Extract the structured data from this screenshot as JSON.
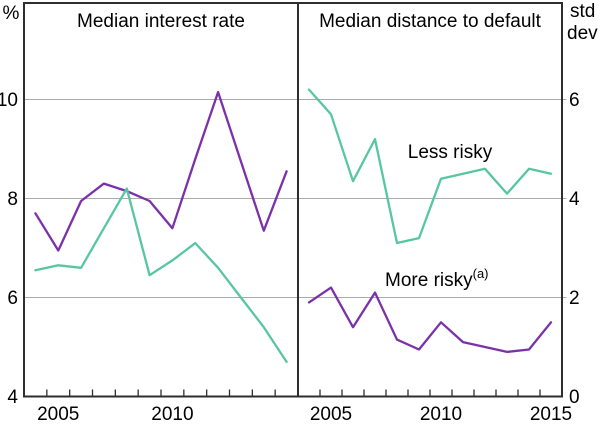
{
  "labels": {
    "left_unit": "%",
    "right_unit_line1": "std",
    "right_unit_line2": "dev",
    "less_risky": "Less risky",
    "more_risky": "More risky",
    "more_risky_sup": "(a)"
  },
  "colors": {
    "less_risky": "#58C6A3",
    "more_risky": "#7B31AA",
    "grid": "#ABABAB",
    "frame": "#2E2E2E",
    "tick": "#2E2E2E"
  },
  "chart_data": [
    {
      "type": "line",
      "panel": "left",
      "title": "Median interest rate",
      "ylabel": "%",
      "ylim": [
        4,
        12
      ],
      "yticks": [
        4,
        6,
        8,
        10
      ],
      "grid": true,
      "x": [
        2004,
        2005,
        2006,
        2007,
        2008,
        2009,
        2010,
        2011,
        2012,
        2013,
        2014,
        2015
      ],
      "xticks": [
        2005,
        2006,
        2007,
        2008,
        2009,
        2010,
        2011,
        2012,
        2013,
        2014,
        2015
      ],
      "xtick_labels": [
        "2005",
        "2010"
      ],
      "series": [
        {
          "name": "Less risky",
          "color_key": "less_risky",
          "values": [
            6.55,
            6.65,
            6.6,
            7.4,
            8.2,
            6.45,
            6.75,
            7.1,
            6.6,
            6.0,
            5.4,
            4.7
          ]
        },
        {
          "name": "More risky",
          "color_key": "more_risky",
          "values": [
            7.7,
            6.95,
            7.95,
            8.3,
            8.15,
            7.95,
            7.4,
            8.8,
            10.15,
            8.75,
            7.35,
            8.55
          ]
        }
      ]
    },
    {
      "type": "line",
      "panel": "right",
      "title": "Median distance to default",
      "ylabel": "std dev",
      "ylim": [
        0,
        8
      ],
      "yticks": [
        0,
        2,
        4,
        6
      ],
      "grid": true,
      "x": [
        2004,
        2005,
        2006,
        2007,
        2008,
        2009,
        2010,
        2011,
        2012,
        2013,
        2014,
        2015
      ],
      "xticks": [
        2005,
        2006,
        2007,
        2008,
        2009,
        2010,
        2011,
        2012,
        2013,
        2014,
        2015
      ],
      "xtick_labels": [
        "2005",
        "2010",
        "2015"
      ],
      "series": [
        {
          "name": "Less risky",
          "color_key": "less_risky",
          "values": [
            6.2,
            5.7,
            4.35,
            5.2,
            3.1,
            3.2,
            4.4,
            4.5,
            4.6,
            4.1,
            4.6,
            4.5
          ]
        },
        {
          "name": "More risky",
          "footnote_marker": "(a)",
          "color_key": "more_risky",
          "values": [
            1.9,
            2.2,
            1.4,
            2.1,
            1.15,
            0.95,
            1.5,
            1.1,
            1.0,
            0.9,
            0.95,
            1.5
          ]
        }
      ]
    }
  ]
}
